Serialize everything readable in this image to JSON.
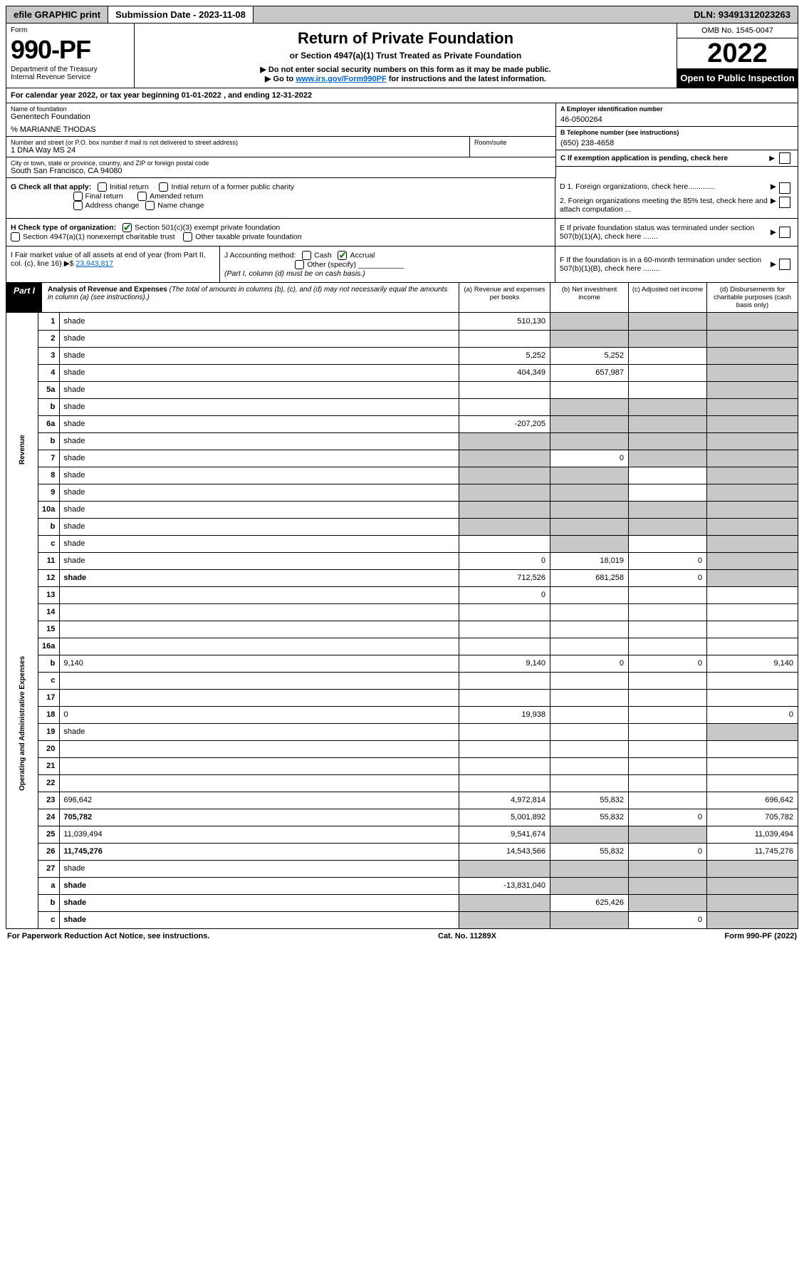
{
  "topbar": {
    "efile": "efile GRAPHIC print",
    "sub_label": "Submission Date - 2023-11-08",
    "dln": "DLN: 93491312023263"
  },
  "header": {
    "form_word": "Form",
    "form_no": "990-PF",
    "dept": "Department of the Treasury",
    "irs": "Internal Revenue Service",
    "title": "Return of Private Foundation",
    "subtitle": "or Section 4947(a)(1) Trust Treated as Private Foundation",
    "note1": "▶ Do not enter social security numbers on this form as it may be made public.",
    "note2_pre": "▶ Go to ",
    "note2_link": "www.irs.gov/Form990PF",
    "note2_post": " for instructions and the latest information.",
    "omb": "OMB No. 1545-0047",
    "year": "2022",
    "open": "Open to Public Inspection"
  },
  "cal": "For calendar year 2022, or tax year beginning 01-01-2022                              , and ending 12-31-2022",
  "entity": {
    "name_label": "Name of foundation",
    "name": "Genentech Foundation",
    "co": "% MARIANNE THODAS",
    "addr_label": "Number and street (or P.O. box number if mail is not delivered to street address)",
    "addr": "1 DNA Way MS 24",
    "room_label": "Room/suite",
    "city_label": "City or town, state or province, country, and ZIP or foreign postal code",
    "city": "South San Francisco, CA  94080",
    "ein_label": "A Employer identification number",
    "ein": "46-0500264",
    "tel_label": "B Telephone number (see instructions)",
    "tel": "(650) 238-4658",
    "c_label": "C If exemption application is pending, check here"
  },
  "g": {
    "label": "G Check all that apply:",
    "o1": "Initial return",
    "o2": "Initial return of a former public charity",
    "o3": "Final return",
    "o4": "Amended return",
    "o5": "Address change",
    "o6": "Name change"
  },
  "h": {
    "label": "H Check type of organization:",
    "o1": "Section 501(c)(3) exempt private foundation",
    "o2": "Section 4947(a)(1) nonexempt charitable trust",
    "o3": "Other taxable private foundation"
  },
  "ijf": {
    "i_label": "I Fair market value of all assets at end of year (from Part II, col. (c), line 16)",
    "i_val": "23,943,817",
    "j_label": "J Accounting method:",
    "j_cash": "Cash",
    "j_accrual": "Accrual",
    "j_other": "Other (specify)",
    "j_note": "(Part I, column (d) must be on cash basis.)",
    "f_label": "F If the foundation is in a 60-month termination under section 507(b)(1)(B), check here ........"
  },
  "d_e": {
    "d1": "D 1. Foreign organizations, check here.............",
    "d2": "2. Foreign organizations meeting the 85% test, check here and attach computation ...",
    "e": "E  If private foundation status was terminated under section 507(b)(1)(A), check here ......."
  },
  "part1": {
    "badge": "Part I",
    "title": "Analysis of Revenue and Expenses",
    "note": " (The total of amounts in columns (b), (c), and (d) may not necessarily equal the amounts in column (a) (see instructions).)",
    "col_a": "(a) Revenue and expenses per books",
    "col_b": "(b) Net investment income",
    "col_c": "(c) Adjusted net income",
    "col_d": "(d) Disbursements for charitable purposes (cash basis only)"
  },
  "side": {
    "rev": "Revenue",
    "exp": "Operating and Administrative Expenses"
  },
  "rows": [
    {
      "n": "1",
      "d": "shade",
      "a": "510,130",
      "b": "shade",
      "c": "shade"
    },
    {
      "n": "2",
      "d": "shade",
      "a": "",
      "b": "shade",
      "c": "shade"
    },
    {
      "n": "3",
      "d": "shade",
      "a": "5,252",
      "b": "5,252",
      "c": ""
    },
    {
      "n": "4",
      "d": "shade",
      "a": "404,349",
      "b": "657,987",
      "c": ""
    },
    {
      "n": "5a",
      "d": "shade",
      "a": "",
      "b": "",
      "c": ""
    },
    {
      "n": "b",
      "d": "shade",
      "a": "",
      "b": "shade",
      "c": "shade"
    },
    {
      "n": "6a",
      "d": "shade",
      "a": "-207,205",
      "b": "shade",
      "c": "shade"
    },
    {
      "n": "b",
      "d": "shade",
      "a": "shade",
      "b": "shade",
      "c": "shade"
    },
    {
      "n": "7",
      "d": "shade",
      "a": "shade",
      "b": "0",
      "c": "shade"
    },
    {
      "n": "8",
      "d": "shade",
      "a": "shade",
      "b": "shade",
      "c": ""
    },
    {
      "n": "9",
      "d": "shade",
      "a": "shade",
      "b": "shade",
      "c": ""
    },
    {
      "n": "10a",
      "d": "shade",
      "a": "shade",
      "b": "shade",
      "c": "shade"
    },
    {
      "n": "b",
      "d": "shade",
      "a": "shade",
      "b": "shade",
      "c": "shade"
    },
    {
      "n": "c",
      "d": "shade",
      "a": "",
      "b": "shade",
      "c": ""
    },
    {
      "n": "11",
      "d": "shade",
      "a": "0",
      "b": "18,019",
      "c": "0"
    },
    {
      "n": "12",
      "d": "shade",
      "a": "712,526",
      "b": "681,258",
      "c": "0",
      "bold": true
    }
  ],
  "exp_rows": [
    {
      "n": "13",
      "d": "",
      "a": "0",
      "b": "",
      "c": ""
    },
    {
      "n": "14",
      "d": "",
      "a": "",
      "b": "",
      "c": ""
    },
    {
      "n": "15",
      "d": "",
      "a": "",
      "b": "",
      "c": ""
    },
    {
      "n": "16a",
      "d": "",
      "a": "",
      "b": "",
      "c": ""
    },
    {
      "n": "b",
      "d": "9,140",
      "a": "9,140",
      "b": "0",
      "c": "0"
    },
    {
      "n": "c",
      "d": "",
      "a": "",
      "b": "",
      "c": ""
    },
    {
      "n": "17",
      "d": "",
      "a": "",
      "b": "",
      "c": ""
    },
    {
      "n": "18",
      "d": "0",
      "a": "19,938",
      "b": "",
      "c": ""
    },
    {
      "n": "19",
      "d": "shade",
      "a": "",
      "b": "",
      "c": ""
    },
    {
      "n": "20",
      "d": "",
      "a": "",
      "b": "",
      "c": ""
    },
    {
      "n": "21",
      "d": "",
      "a": "",
      "b": "",
      "c": ""
    },
    {
      "n": "22",
      "d": "",
      "a": "",
      "b": "",
      "c": ""
    },
    {
      "n": "23",
      "d": "696,642",
      "a": "4,972,814",
      "b": "55,832",
      "c": ""
    },
    {
      "n": "24",
      "d": "705,782",
      "a": "5,001,892",
      "b": "55,832",
      "c": "0",
      "bold": true
    },
    {
      "n": "25",
      "d": "11,039,494",
      "a": "9,541,674",
      "b": "shade",
      "c": "shade"
    },
    {
      "n": "26",
      "d": "11,745,276",
      "a": "14,543,566",
      "b": "55,832",
      "c": "0",
      "bold": true
    }
  ],
  "net_rows": [
    {
      "n": "27",
      "d": "shade",
      "a": "shade",
      "b": "shade",
      "c": "shade"
    },
    {
      "n": "a",
      "d": "shade",
      "a": "-13,831,040",
      "b": "shade",
      "c": "shade",
      "bold": true
    },
    {
      "n": "b",
      "d": "shade",
      "a": "shade",
      "b": "625,426",
      "c": "shade",
      "bold": true
    },
    {
      "n": "c",
      "d": "shade",
      "a": "shade",
      "b": "shade",
      "c": "0",
      "bold": true
    }
  ],
  "footer": {
    "left": "For Paperwork Reduction Act Notice, see instructions.",
    "mid": "Cat. No. 11289X",
    "right": "Form 990-PF (2022)"
  }
}
